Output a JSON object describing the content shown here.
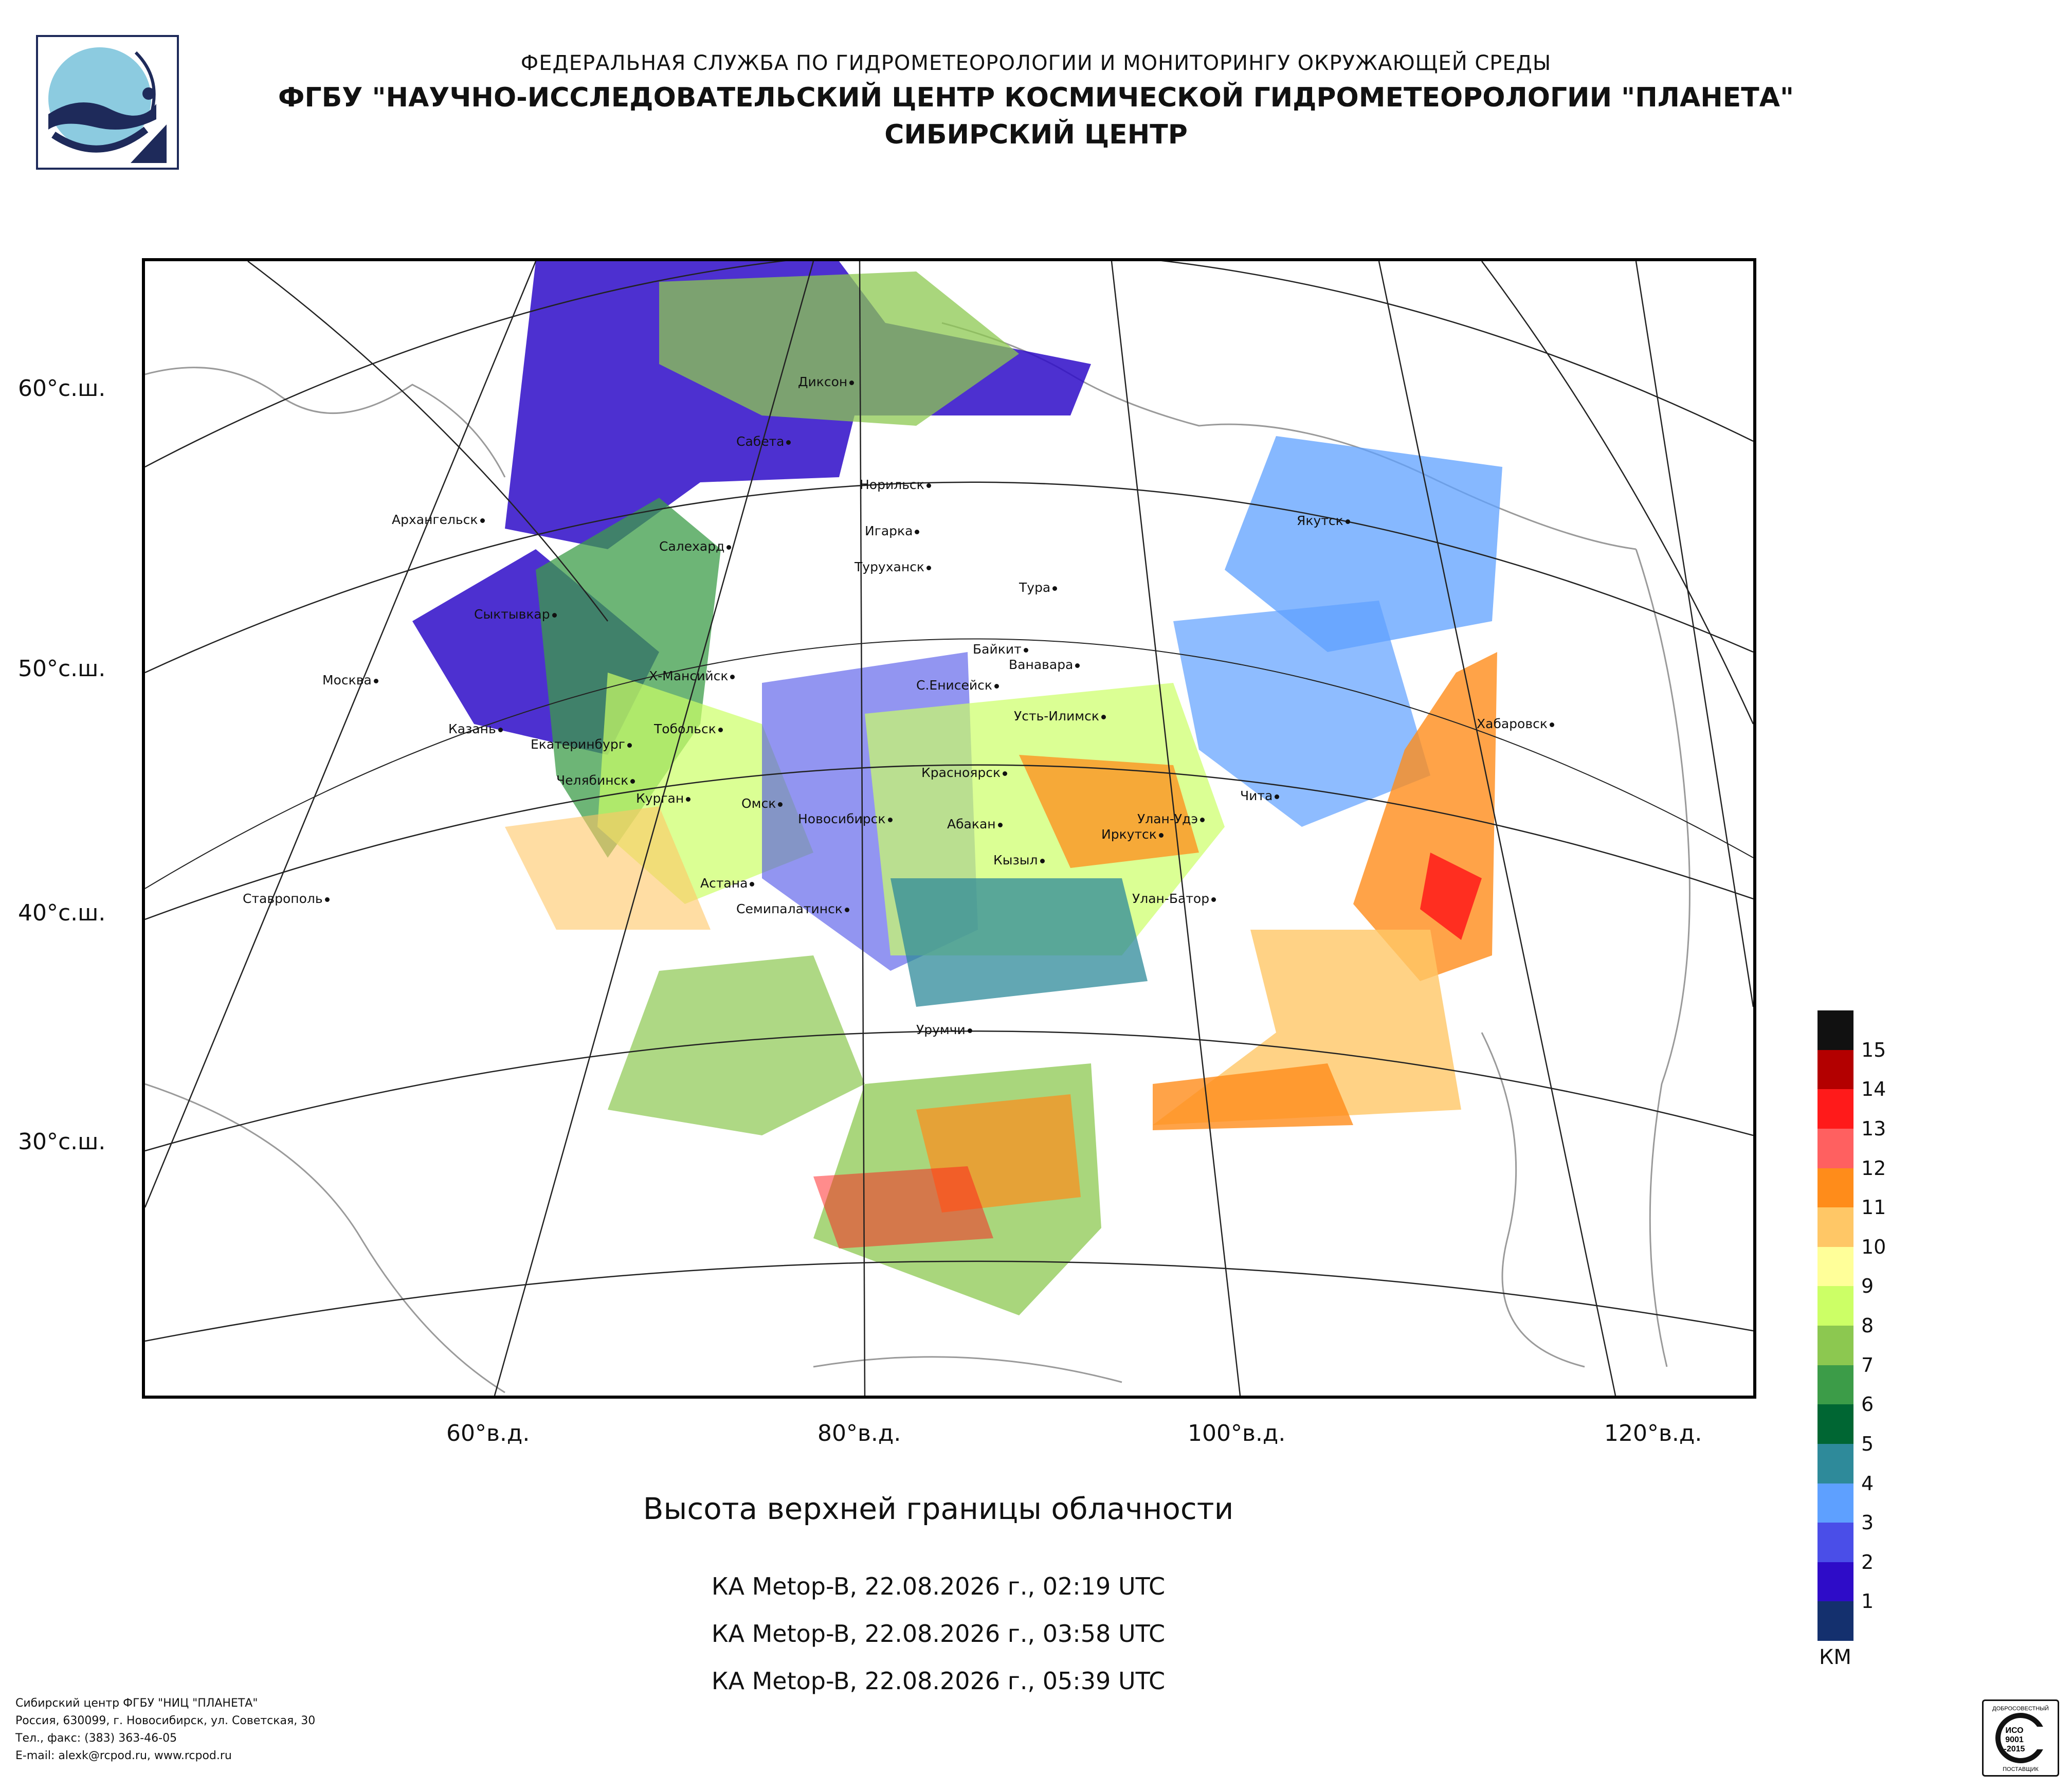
{
  "header": {
    "agency": "ФЕДЕРАЛЬНАЯ СЛУЖБА ПО ГИДРОМЕТЕОРОЛОГИИ И МОНИТОРИНГУ ОКРУЖАЮЩЕЙ СРЕДЫ",
    "institute": "ФГБУ \"НАУЧНО-ИССЛЕДОВАТЕЛЬСКИЙ ЦЕНТР КОСМИЧЕСКОЙ ГИДРОМЕТЕОРОЛОГИИ \"ПЛАНЕТА\"",
    "center": "СИБИРСКИЙ ЦЕНТР"
  },
  "map": {
    "lat_labels": [
      "60°с.ш.",
      "50°с.ш.",
      "40°с.ш.",
      "30°с.ш."
    ],
    "lon_labels": [
      "60°в.д.",
      "80°в.д.",
      "100°в.д.",
      "120°в.д."
    ],
    "cities": [
      {
        "name": "Диксон"
      },
      {
        "name": "Сабета"
      },
      {
        "name": "Норильск"
      },
      {
        "name": "Игарка"
      },
      {
        "name": "Туруханск"
      },
      {
        "name": "Тура"
      },
      {
        "name": "Якутск"
      },
      {
        "name": "Архангельск"
      },
      {
        "name": "Салехард"
      },
      {
        "name": "Сыктывкар"
      },
      {
        "name": "Байкит"
      },
      {
        "name": "Ванавара"
      },
      {
        "name": "Москва"
      },
      {
        "name": "Х-Мансийск"
      },
      {
        "name": "С.Енисейск"
      },
      {
        "name": "Усть-Илимск"
      },
      {
        "name": "Казань"
      },
      {
        "name": "Екатеринбург"
      },
      {
        "name": "Тобольск"
      },
      {
        "name": "Хабаровск"
      },
      {
        "name": "Челябинск"
      },
      {
        "name": "Курган"
      },
      {
        "name": "Омск"
      },
      {
        "name": "Красноярск"
      },
      {
        "name": "Чита"
      },
      {
        "name": "Новосибирск"
      },
      {
        "name": "Абакан"
      },
      {
        "name": "Улан-Удэ"
      },
      {
        "name": "Иркутск"
      },
      {
        "name": "Кызыл"
      },
      {
        "name": "Астана"
      },
      {
        "name": "Ставрополь"
      },
      {
        "name": "Семипалатинск"
      },
      {
        "name": "Улан-Батор"
      },
      {
        "name": "Урумчи"
      }
    ]
  },
  "title": "Высота верхней границы облачности",
  "passes": [
    "КА Metop-B, 22.08.2026 г., 02:19 UTC",
    "КА Metop-B, 22.08.2026 г., 03:58 UTC",
    "КА Metop-B, 22.08.2026 г., 05:39 UTC"
  ],
  "legend": {
    "unit": "КМ",
    "levels": [
      {
        "label": "15",
        "color": "#111111"
      },
      {
        "label": "14",
        "color": "#b30000"
      },
      {
        "label": "13",
        "color": "#ff1a1a"
      },
      {
        "label": "12",
        "color": "#ff6060"
      },
      {
        "label": "11",
        "color": "#ff8c1a"
      },
      {
        "label": "10",
        "color": "#ffc766"
      },
      {
        "label": "9",
        "color": "#ffff99"
      },
      {
        "label": "8",
        "color": "#ccff66"
      },
      {
        "label": "7",
        "color": "#8cc850"
      },
      {
        "label": "6",
        "color": "#3c9c48"
      },
      {
        "label": "5",
        "color": "#006633"
      },
      {
        "label": "4",
        "color": "#2e8a9a"
      },
      {
        "label": "3",
        "color": "#5ea0ff"
      },
      {
        "label": "2",
        "color": "#4a4ee8"
      },
      {
        "label": "1",
        "color": "#2e0cc8"
      },
      {
        "label": "",
        "color": "#14306e"
      }
    ]
  },
  "footer": {
    "line1": "Сибирский центр ФГБУ \"НИЦ \"ПЛАНЕТА\"",
    "line2": "Россия, 630099, г. Новосибирск, ул. Советская, 30",
    "line3": "Тел., факс: (383) 363-46-05",
    "line4": "E-mail: alexk@rcpod.ru, www.rcpod.ru",
    "stamp_top": "ДОБРОСОВЕСТНЫЙ",
    "stamp_mid1": "ИСО",
    "stamp_mid2": "9001",
    "stamp_mid3": "-2015",
    "stamp_bottom": "ПОСТАВЩИК"
  }
}
